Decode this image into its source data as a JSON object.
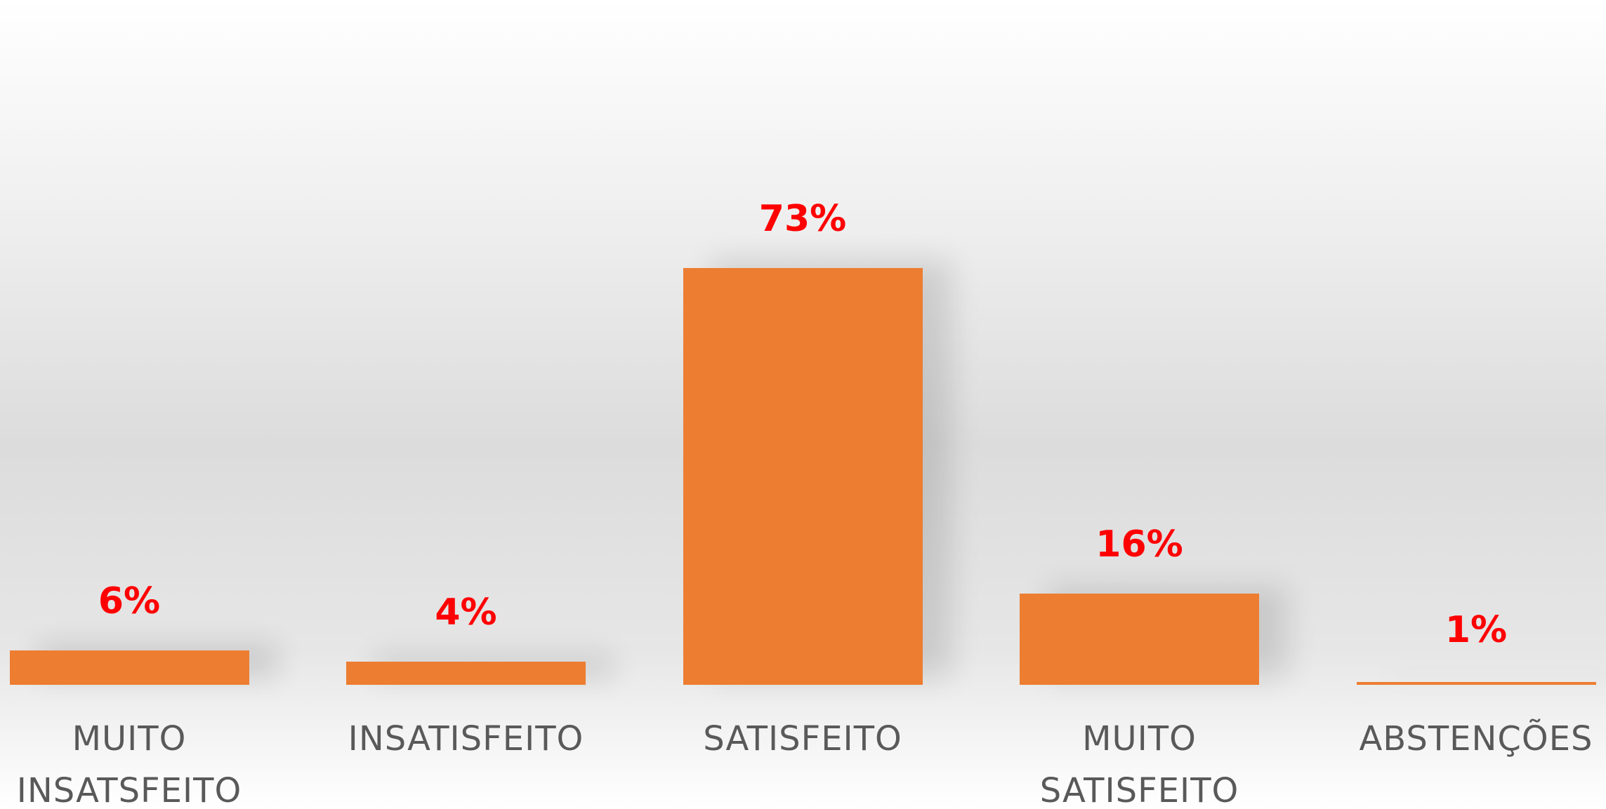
{
  "chart_data": {
    "type": "bar",
    "categories": [
      "MUITO INSATSFEITO",
      "INSATISFEITO",
      "SATISFEITO",
      "MUITO SATISFEITO",
      "ABSTENÇÕES"
    ],
    "values": [
      6,
      4,
      73,
      16,
      1
    ],
    "value_labels": [
      "6%",
      "4%",
      "73%",
      "16%",
      "1%"
    ],
    "color": "#ed7d31"
  }
}
